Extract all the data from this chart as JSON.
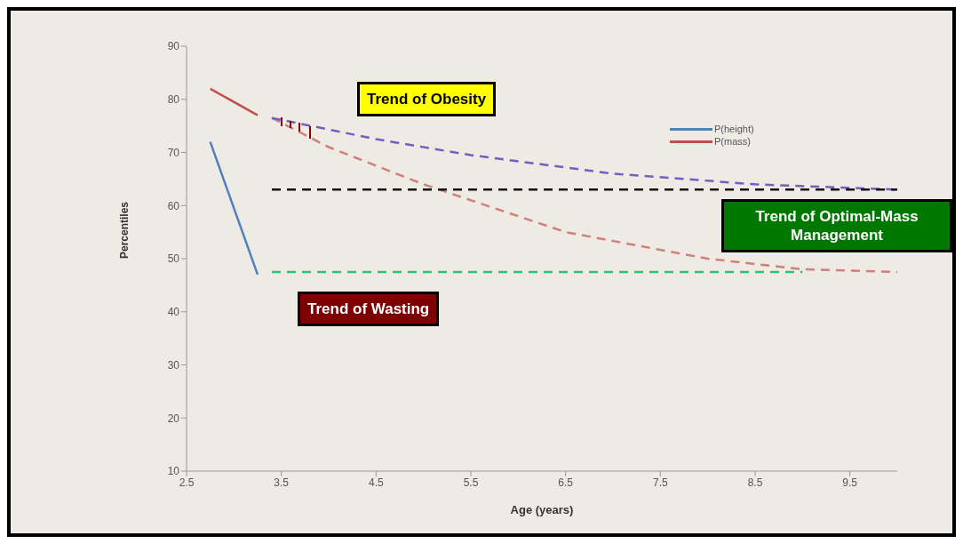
{
  "chart_data": {
    "type": "line",
    "xlabel": "Age (years)",
    "ylabel": "Percentiles",
    "xlim": [
      2.5,
      10
    ],
    "xticks": [
      2.5,
      3.5,
      4.5,
      5.5,
      6.5,
      7.5,
      8.5,
      9.5
    ],
    "ylim": [
      10,
      90
    ],
    "yticks": [
      10,
      20,
      30,
      40,
      50,
      60,
      70,
      80,
      90
    ],
    "grid": false,
    "legend": "top right",
    "marker": "none",
    "line_style": "solid",
    "annotations": [
      "Trend of Obesity",
      "Trend of Wasting",
      "Trend of Optimal-Mass Management"
    ],
    "series": [
      {
        "name": "P(height)",
        "color": "#4f81bd",
        "x": [
          2.75,
          3.25
        ],
        "values": [
          72,
          47
        ]
      },
      {
        "name": "P(mass)",
        "color": "#c0504d",
        "x": [
          2.75,
          3.25
        ],
        "values": [
          82,
          77
        ]
      },
      {
        "color": "#d07f7c",
        "line_style": "dashed",
        "x": [
          3.4,
          4.0,
          5.0,
          6.5,
          8.0,
          9.0,
          10.0
        ],
        "values": [
          76.5,
          71,
          64,
          55,
          50,
          48,
          47.5
        ]
      },
      {
        "color": "#7060c0",
        "line_style": "dashed",
        "x": [
          3.4,
          4.5,
          5.5,
          7.0,
          8.5,
          10.0
        ],
        "values": [
          76.5,
          72.5,
          69.5,
          66,
          64,
          63
        ]
      },
      {
        "color": "#111111",
        "line_style": "dashed",
        "x": [
          3.4,
          10.0
        ],
        "values": [
          63,
          63
        ]
      },
      {
        "color": "#33c070",
        "line_style": "dashed",
        "x": [
          3.4,
          9.0
        ],
        "values": [
          47.5,
          47.5
        ]
      }
    ]
  }
}
